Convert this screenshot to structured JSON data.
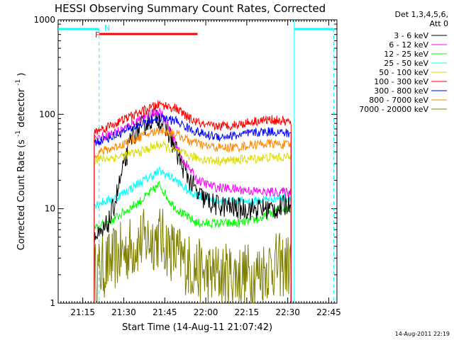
{
  "chart_data": {
    "type": "line",
    "title": "HESSI Observing Summary Count Rates, Corrected",
    "xlabel": "Start Time (14-Aug-11 21:07:42)",
    "ylabel_main": "Corrected Count Rate (s",
    "ylabel_sup1": "-1",
    "ylabel_mid": " detector",
    "ylabel_sup2": "-1",
    "ylabel_end": ")",
    "y_scale": "log",
    "ylim": [
      1,
      1000
    ],
    "xlim_minutes": [
      21.1,
      22.8
    ],
    "x_ticks": [
      {
        "label": "21:15",
        "t": 21.25
      },
      {
        "label": "21:30",
        "t": 21.5
      },
      {
        "label": "21:45",
        "t": 21.75
      },
      {
        "label": "22:00",
        "t": 22.0
      },
      {
        "label": "22:15",
        "t": 22.25
      },
      {
        "label": "22:30",
        "t": 22.5
      },
      {
        "label": "22:45",
        "t": 22.75
      }
    ],
    "y_ticks": [
      {
        "label": "1",
        "v": 1
      },
      {
        "label": "10",
        "v": 10
      },
      {
        "label": "100",
        "v": 100
      },
      {
        "label": "1000",
        "v": 1000
      }
    ],
    "legend_header": [
      "Det 1,3,4,5,6,",
      "Att 0"
    ],
    "legend_placement": "top-right outside",
    "series": [
      {
        "name": "3 - 6 keV",
        "color": "#000000",
        "points": [
          [
            21.32,
            5
          ],
          [
            21.36,
            5
          ],
          [
            21.42,
            8
          ],
          [
            21.55,
            60
          ],
          [
            21.7,
            100
          ],
          [
            21.78,
            60
          ],
          [
            21.85,
            30
          ],
          [
            21.95,
            14
          ],
          [
            22.05,
            11
          ],
          [
            22.2,
            10
          ],
          [
            22.35,
            10
          ],
          [
            22.45,
            10
          ],
          [
            22.52,
            12
          ]
        ]
      },
      {
        "name": "6 - 12 keV",
        "color": "#ff00ff",
        "points": [
          [
            21.32,
            55
          ],
          [
            21.4,
            60
          ],
          [
            21.5,
            70
          ],
          [
            21.6,
            90
          ],
          [
            21.72,
            110
          ],
          [
            21.78,
            70
          ],
          [
            21.85,
            35
          ],
          [
            21.95,
            20
          ],
          [
            22.05,
            17
          ],
          [
            22.2,
            16
          ],
          [
            22.35,
            15
          ],
          [
            22.45,
            15
          ],
          [
            22.52,
            15
          ]
        ]
      },
      {
        "name": "12 - 25 keV",
        "color": "#00ff00",
        "points": [
          [
            21.32,
            6
          ],
          [
            21.45,
            8
          ],
          [
            21.6,
            12
          ],
          [
            21.72,
            18
          ],
          [
            21.78,
            12
          ],
          [
            21.85,
            9
          ],
          [
            21.95,
            7
          ],
          [
            22.05,
            7
          ],
          [
            22.2,
            7
          ],
          [
            22.35,
            8
          ],
          [
            22.45,
            10
          ],
          [
            22.52,
            10
          ]
        ]
      },
      {
        "name": "25 - 50 keV",
        "color": "#00ffff",
        "points": [
          [
            21.32,
            11
          ],
          [
            21.45,
            13
          ],
          [
            21.6,
            19
          ],
          [
            21.72,
            25
          ],
          [
            21.8,
            21
          ],
          [
            21.9,
            15
          ],
          [
            22.0,
            13
          ],
          [
            22.1,
            12
          ],
          [
            22.2,
            12
          ],
          [
            22.3,
            12
          ],
          [
            22.4,
            13
          ],
          [
            22.52,
            13
          ]
        ]
      },
      {
        "name": "50 - 100 keV",
        "color": "#dddd00",
        "points": [
          [
            21.32,
            33
          ],
          [
            21.45,
            35
          ],
          [
            21.6,
            40
          ],
          [
            21.72,
            48
          ],
          [
            21.8,
            42
          ],
          [
            21.9,
            36
          ],
          [
            22.0,
            33
          ],
          [
            22.1,
            32
          ],
          [
            22.2,
            33
          ],
          [
            22.3,
            34
          ],
          [
            22.4,
            35
          ],
          [
            22.52,
            35
          ]
        ]
      },
      {
        "name": "100 - 300 keV",
        "color": "#ff0000",
        "points": [
          [
            21.32,
            65
          ],
          [
            21.45,
            80
          ],
          [
            21.6,
            105
          ],
          [
            21.72,
            128
          ],
          [
            21.82,
            115
          ],
          [
            21.9,
            90
          ],
          [
            22.0,
            75
          ],
          [
            22.1,
            75
          ],
          [
            22.2,
            78
          ],
          [
            22.3,
            85
          ],
          [
            22.4,
            88
          ],
          [
            22.52,
            82
          ]
        ]
      },
      {
        "name": "300 - 800 keV",
        "color": "#0000ff",
        "points": [
          [
            21.32,
            50
          ],
          [
            21.45,
            60
          ],
          [
            21.6,
            78
          ],
          [
            21.72,
            92
          ],
          [
            21.82,
            85
          ],
          [
            21.9,
            70
          ],
          [
            22.0,
            60
          ],
          [
            22.1,
            58
          ],
          [
            22.2,
            60
          ],
          [
            22.3,
            64
          ],
          [
            22.4,
            66
          ],
          [
            22.52,
            62
          ]
        ]
      },
      {
        "name": "800 - 7000 keV",
        "color": "#ff8800",
        "points": [
          [
            21.32,
            38
          ],
          [
            21.45,
            45
          ],
          [
            21.6,
            58
          ],
          [
            21.72,
            68
          ],
          [
            21.82,
            62
          ],
          [
            21.9,
            52
          ],
          [
            22.0,
            46
          ],
          [
            22.1,
            44
          ],
          [
            22.2,
            45
          ],
          [
            22.3,
            48
          ],
          [
            22.4,
            49
          ],
          [
            22.52,
            47
          ]
        ]
      },
      {
        "name": "7000 - 20000 keV",
        "color": "#808000",
        "points": [
          [
            21.32,
            2
          ],
          [
            21.45,
            3
          ],
          [
            21.6,
            4.5
          ],
          [
            21.72,
            5
          ],
          [
            21.8,
            3.5
          ],
          [
            21.9,
            2.5
          ],
          [
            22.0,
            2
          ],
          [
            22.1,
            2
          ],
          [
            22.2,
            2
          ],
          [
            22.3,
            2
          ],
          [
            22.4,
            2.5
          ],
          [
            22.52,
            2.5
          ]
        ]
      }
    ],
    "annotations": {
      "attenuator_text": "N",
      "flag_text": "F",
      "night_color": "#00ffff",
      "flare_color": "#ff0000",
      "flare_span": [
        21.35,
        21.95
      ],
      "night_intervals": [
        [
          21.1,
          21.35
        ],
        [
          22.54,
          22.78
        ]
      ]
    },
    "timestamp": "14-Aug-2011 22:19"
  }
}
